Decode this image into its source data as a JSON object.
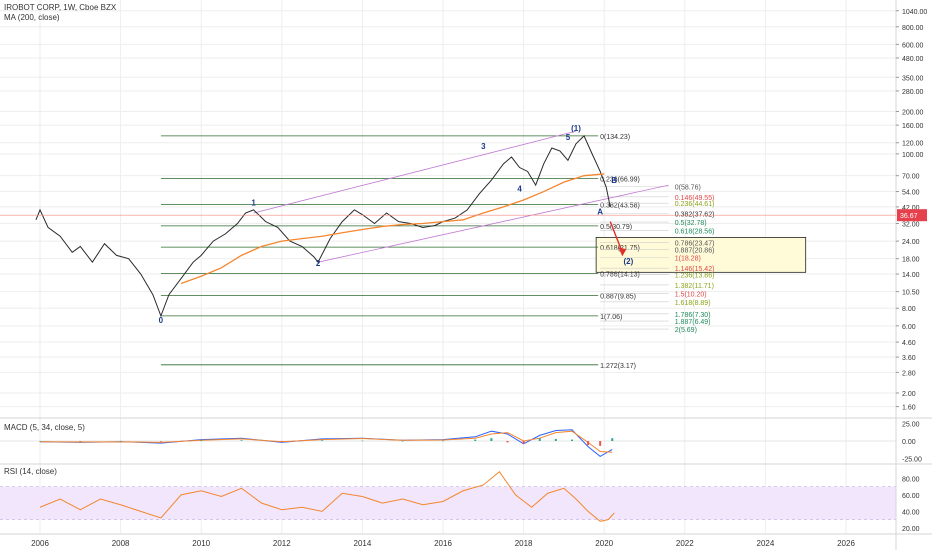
{
  "header": {
    "symbol": "IROBOT CORP, 1W, Cboe BZX",
    "ma_label": "MA (200, close)",
    "macd_label": "MACD (5, 34, close, 5)",
    "rsi_label": "RSI (14, close)"
  },
  "chart_data": [
    {
      "type": "line",
      "panel": "price",
      "scale": "log",
      "ylim": [
        1.35,
        1240
      ],
      "xlim": [
        2005.75,
        2027.2
      ],
      "grid": true,
      "y_ticks": [
        "1040.00",
        "800.00",
        "600.00",
        "480.00",
        "350.00",
        "280.00",
        "200.00",
        "160.00",
        "120.00",
        "100.00",
        "70.00",
        "54.00",
        "42.00",
        "32.00",
        "24.00",
        "18.00",
        "14.00",
        "10.50",
        "8.00",
        "6.00",
        "4.60",
        "3.60",
        "2.80",
        "2.00",
        "1.60"
      ],
      "x_ticks": [
        "2006",
        "2008",
        "2010",
        "2012",
        "2014",
        "2016",
        "2018",
        "2020",
        "2022",
        "2024",
        "2026"
      ],
      "last_price": 36.67,
      "last_price_label": "36.67",
      "series": [
        {
          "role": "price",
          "color": "#2a2a2a",
          "x": [
            2005.9,
            2006.0,
            2006.2,
            2006.5,
            2006.8,
            2007.0,
            2007.3,
            2007.6,
            2007.9,
            2008.2,
            2008.5,
            2008.8,
            2009.0,
            2009.2,
            2009.5,
            2009.8,
            2010.0,
            2010.3,
            2010.6,
            2010.9,
            2011.1,
            2011.3,
            2011.6,
            2011.9,
            2012.2,
            2012.5,
            2012.8,
            2012.9,
            2013.2,
            2013.5,
            2013.8,
            2014.0,
            2014.3,
            2014.6,
            2014.9,
            2015.2,
            2015.5,
            2015.8,
            2016.0,
            2016.3,
            2016.6,
            2016.9,
            2017.2,
            2017.5,
            2017.7,
            2017.9,
            2018.1,
            2018.3,
            2018.5,
            2018.7,
            2018.9,
            2019.1,
            2019.3,
            2019.5,
            2019.7,
            2019.9,
            2020.05,
            2020.15
          ],
          "y": [
            34,
            40,
            30,
            26,
            20,
            22,
            17,
            23,
            19,
            18,
            14,
            10,
            7.06,
            10,
            13,
            17,
            19,
            24,
            27,
            32,
            38,
            40,
            33,
            30,
            24,
            22,
            18.5,
            17,
            25,
            33,
            40,
            37,
            32,
            38,
            33,
            32,
            30,
            31,
            33,
            35,
            40,
            52,
            65,
            85,
            95,
            80,
            75,
            60,
            85,
            110,
            105,
            90,
            118,
            134.23,
            100,
            75,
            58,
            42
          ]
        },
        {
          "role": "MA 200",
          "color": "#f5862e",
          "x": [
            2009.5,
            2010.0,
            2010.5,
            2011.0,
            2011.5,
            2012.0,
            2012.5,
            2013.0,
            2013.5,
            2014.0,
            2014.5,
            2015.0,
            2015.5,
            2016.0,
            2016.5,
            2017.0,
            2017.5,
            2018.0,
            2018.5,
            2019.0,
            2019.5,
            2020.0
          ],
          "y": [
            12,
            13.5,
            15.5,
            19,
            22,
            24,
            25,
            26,
            27.5,
            29,
            30.5,
            31.5,
            32,
            33,
            34,
            38,
            42,
            47,
            54,
            63,
            70,
            72
          ]
        }
      ],
      "fibonacci_retracement": [
        {
          "label": "0(134.23)",
          "value": 134.23
        },
        {
          "label": "0.236(66.99)",
          "value": 66.99
        },
        {
          "label": "0.382(43.58)",
          "value": 43.58
        },
        {
          "label": "0.5(30.79)",
          "value": 30.79
        },
        {
          "label": "0.618(21.75)",
          "value": 21.75
        },
        {
          "label": "0.786(14.13)",
          "value": 14.13
        },
        {
          "label": "0.887(9.85)",
          "value": 9.85
        },
        {
          "label": "1(7.06)",
          "value": 7.06
        },
        {
          "label": "1.272(3.17)",
          "value": 3.17
        }
      ],
      "fib_extension": [
        {
          "label": "0(58.76)",
          "value": 58.76,
          "color": "#555555"
        },
        {
          "label": "0.146(49.55)",
          "value": 49.55,
          "color": "#e04848"
        },
        {
          "label": "0.236(44.61)",
          "value": 44.61,
          "color": "#8aa51a"
        },
        {
          "label": "0.382(37.62)",
          "value": 37.62,
          "color": "#333333"
        },
        {
          "label": "0.5(32.78)",
          "value": 32.78,
          "color": "#1f8a5b"
        },
        {
          "label": "0.618(28.56)",
          "value": 28.56,
          "color": "#1f8a5b"
        },
        {
          "label": "0.786(23.47)",
          "value": 23.47,
          "color": "#555555"
        },
        {
          "label": "0.887(20.86)",
          "value": 20.86,
          "color": "#555555"
        },
        {
          "label": "1(18.28)",
          "value": 18.28,
          "color": "#e04848"
        },
        {
          "label": "1.146(15.42)",
          "value": 15.42,
          "color": "#e04848"
        },
        {
          "label": "1.236(13.86)",
          "value": 13.86,
          "color": "#8aa51a"
        },
        {
          "label": "1.382(11.71)",
          "value": 11.71,
          "color": "#8aa51a"
        },
        {
          "label": "1.5(10.20)",
          "value": 10.2,
          "color": "#e04848"
        },
        {
          "label": "1.618(8.89)",
          "value": 8.89,
          "color": "#8aa51a"
        },
        {
          "label": "1.786(7.30)",
          "value": 7.3,
          "color": "#1f8a5b"
        },
        {
          "label": "1.887(6.49)",
          "value": 6.49,
          "color": "#1f8a5b"
        },
        {
          "label": "2(5.69)",
          "value": 5.69,
          "color": "#1f8a5b"
        }
      ],
      "wave_labels": [
        {
          "text": "0",
          "x": 2009.0,
          "y": 6.3
        },
        {
          "text": "1",
          "x": 2011.3,
          "y": 43
        },
        {
          "text": "2",
          "x": 2012.9,
          "y": 16
        },
        {
          "text": "3",
          "x": 2017.0,
          "y": 108
        },
        {
          "text": "4",
          "x": 2017.9,
          "y": 54
        },
        {
          "text": "5",
          "x": 2019.1,
          "y": 126
        },
        {
          "text": "(1)",
          "x": 2019.3,
          "y": 145
        },
        {
          "text": "A",
          "x": 2019.9,
          "y": 37
        },
        {
          "text": "B",
          "x": 2020.25,
          "y": 62
        },
        {
          "text": "(2)",
          "x": 2020.6,
          "y": 16.5
        }
      ],
      "target_zone": {
        "x0": 2019.8,
        "x1": 2025.0,
        "y_top": 25.5,
        "y_bottom": 14.4,
        "color": "#fffbd9"
      }
    },
    {
      "type": "line",
      "panel": "macd",
      "y_ticks": [
        "25.00",
        "0.00",
        "-25.00"
      ],
      "ylim": [
        -30,
        30
      ],
      "series": [
        {
          "role": "macd",
          "color": "#2962ff",
          "x": [
            2006,
            2007,
            2008,
            2009,
            2010,
            2011,
            2012,
            2013,
            2014,
            2015,
            2016,
            2016.8,
            2017.2,
            2017.6,
            2018.0,
            2018.4,
            2018.8,
            2019.2,
            2019.6,
            2019.9,
            2020.2
          ],
          "y": [
            -1,
            -2,
            -1,
            -3,
            2,
            4,
            -2,
            3,
            4,
            1,
            2,
            6,
            14,
            10,
            -4,
            8,
            15,
            16,
            -8,
            -22,
            -12
          ]
        },
        {
          "role": "signal",
          "color": "#f5862e",
          "x": [
            2006,
            2007,
            2008,
            2009,
            2010,
            2011,
            2012,
            2013,
            2014,
            2015,
            2016,
            2016.8,
            2017.2,
            2017.6,
            2018.0,
            2018.4,
            2018.8,
            2019.2,
            2019.6,
            2019.9,
            2020.2
          ],
          "y": [
            -1,
            -1.5,
            -1.2,
            -2,
            1,
            3,
            -1,
            2,
            3.5,
            1,
            1.5,
            4,
            10,
            12,
            0,
            4,
            12,
            14,
            -2,
            -15,
            -16
          ]
        }
      ]
    },
    {
      "type": "line",
      "panel": "rsi",
      "y_ticks": [
        "80.00",
        "60.00",
        "40.00",
        "20.00"
      ],
      "ylim": [
        15,
        95
      ],
      "band": [
        30,
        70
      ],
      "series": [
        {
          "role": "rsi",
          "color": "#f5862e",
          "x": [
            2006,
            2006.5,
            2007,
            2007.5,
            2008,
            2008.5,
            2009,
            2009.5,
            2010,
            2010.5,
            2011,
            2011.5,
            2012,
            2012.5,
            2013,
            2013.5,
            2014,
            2014.5,
            2015,
            2015.5,
            2016,
            2016.5,
            2017,
            2017.4,
            2017.8,
            2018.2,
            2018.6,
            2019,
            2019.3,
            2019.6,
            2019.9,
            2020.1,
            2020.25
          ],
          "y": [
            45,
            55,
            42,
            55,
            48,
            40,
            32,
            60,
            65,
            58,
            68,
            50,
            42,
            45,
            40,
            62,
            58,
            50,
            55,
            48,
            52,
            65,
            72,
            88,
            60,
            45,
            62,
            68,
            55,
            40,
            28,
            30,
            38
          ]
        }
      ]
    }
  ]
}
